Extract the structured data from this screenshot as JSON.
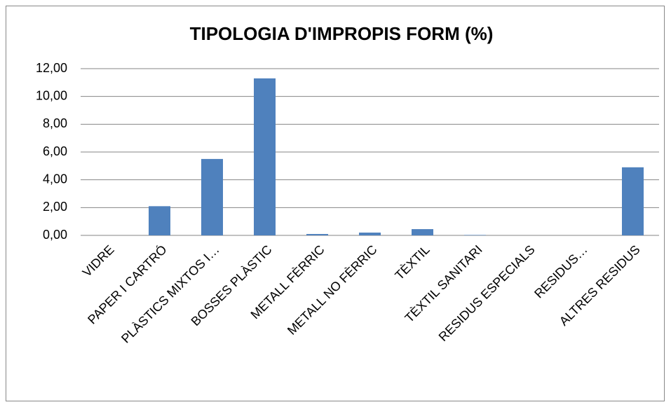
{
  "chart_data": {
    "type": "bar",
    "title": "TIPOLOGIA D'IMPROPIS FORM (%)",
    "categories": [
      "VIDRE",
      "PAPER I CARTRÓ",
      "PLÀSTICS MIXTOS I…",
      "BOSSES PLÀSTIC",
      "METALL FÈRRIC",
      "METALL NO FÈRRIC",
      "TÈXTIL",
      "TÈXTIL SANITARI",
      "RESIDUS ESPECIALS",
      "RESIDUS…",
      "ALTRES RESIDUS"
    ],
    "values": [
      0,
      2.1,
      5.5,
      11.3,
      0.1,
      0.2,
      0.45,
      0.03,
      0,
      0,
      4.9
    ],
    "color": "#4f81bd",
    "ylim": [
      0,
      12
    ],
    "yticks": [
      {
        "value": 0,
        "label": "0,00"
      },
      {
        "value": 2,
        "label": "2,00"
      },
      {
        "value": 4,
        "label": "4,00"
      },
      {
        "value": 6,
        "label": "6,00"
      },
      {
        "value": 8,
        "label": "8,00"
      },
      {
        "value": 10,
        "label": "10,00"
      },
      {
        "value": 12,
        "label": "12,00"
      }
    ],
    "grid": true
  }
}
